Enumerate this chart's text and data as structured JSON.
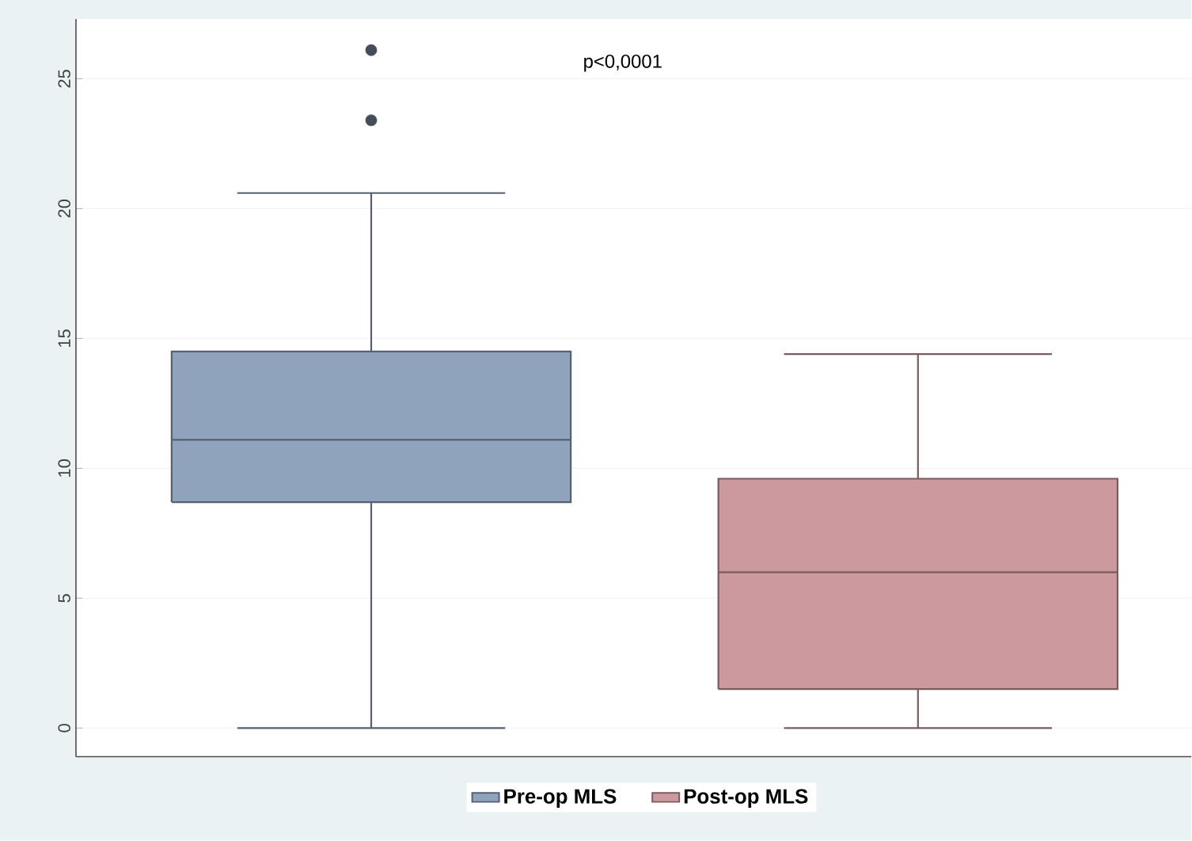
{
  "chart_data": {
    "type": "box",
    "categories": [
      null,
      null
    ],
    "series": [
      {
        "name": "Pre-op MLS",
        "color": "#8fa3bc",
        "boxes": [
          {
            "low": 0,
            "q1": 8.7,
            "median": 11.1,
            "q3": 14.5,
            "high": 20.6,
            "outliers": [
              26.1,
              23.4
            ]
          },
          null
        ]
      },
      {
        "name": "Post-op MLS",
        "color": "#cc9a9e",
        "boxes": [
          null,
          {
            "low": 0,
            "q1": 1.5,
            "median": 6.0,
            "q3": 9.6,
            "high": 14.4
          }
        ]
      }
    ],
    "ylim": [
      -1.1,
      27.3
    ],
    "yticks": [
      0,
      5,
      10,
      15,
      20,
      25
    ],
    "grid": "y",
    "legend": "bottom",
    "annotations": [
      "p<0,0001"
    ]
  }
}
